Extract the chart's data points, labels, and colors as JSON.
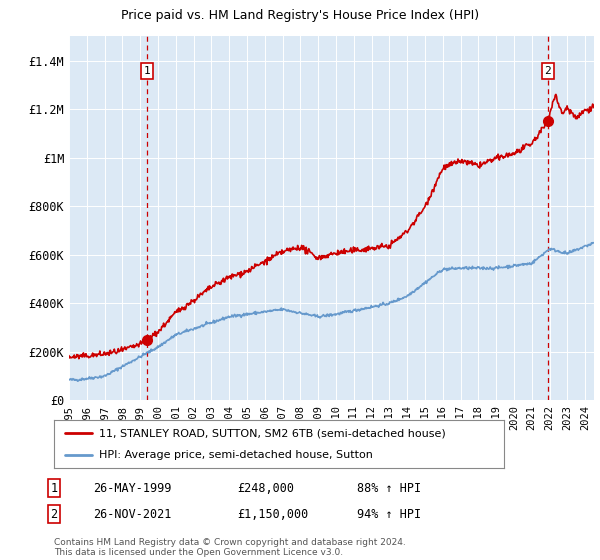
{
  "title": "11, STANLEY ROAD, SUTTON, SM2 6TB",
  "subtitle": "Price paid vs. HM Land Registry's House Price Index (HPI)",
  "background_color": "#ffffff",
  "plot_bg_color": "#dce9f5",
  "red_line_color": "#cc0000",
  "blue_line_color": "#6699cc",
  "ylim": [
    0,
    1500000
  ],
  "yticks": [
    0,
    200000,
    400000,
    600000,
    800000,
    1000000,
    1200000,
    1400000
  ],
  "ytick_labels": [
    "£0",
    "£200K",
    "£400K",
    "£600K",
    "£800K",
    "£1M",
    "£1.2M",
    "£1.4M"
  ],
  "sale1_date_num": 1999.38,
  "sale1_price": 248000,
  "sale2_date_num": 2021.9,
  "sale2_price": 1150000,
  "legend_line1": "11, STANLEY ROAD, SUTTON, SM2 6TB (semi-detached house)",
  "legend_line2": "HPI: Average price, semi-detached house, Sutton",
  "annotation1_label": "1",
  "annotation1_date": "26-MAY-1999",
  "annotation1_price": "£248,000",
  "annotation1_hpi": "88% ↑ HPI",
  "annotation2_label": "2",
  "annotation2_date": "26-NOV-2021",
  "annotation2_price": "£1,150,000",
  "annotation2_hpi": "94% ↑ HPI",
  "footer": "Contains HM Land Registry data © Crown copyright and database right 2024.\nThis data is licensed under the Open Government Licence v3.0.",
  "xmin": 1995.0,
  "xmax": 2024.5
}
